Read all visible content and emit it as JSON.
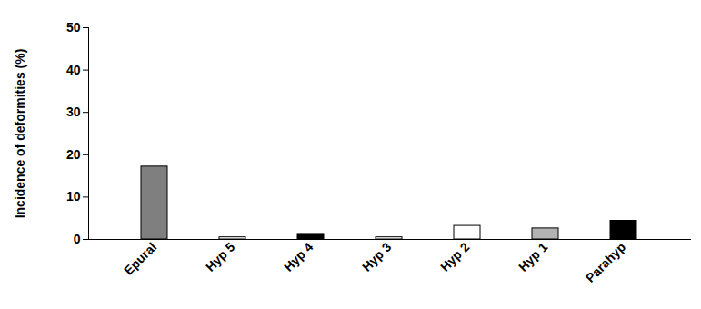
{
  "chart_data": {
    "type": "bar",
    "ylabel": "Incidence of deformities (%)",
    "categories": [
      "Epural",
      "Hyp 5",
      "Hyp 4",
      "Hyp 3",
      "Hyp 2",
      "Hyp 1",
      "Parahyp"
    ],
    "values": [
      17.2,
      0.5,
      1.3,
      0.5,
      3.2,
      2.6,
      4.4
    ],
    "colors": [
      "#7f7f7f",
      "#ffffff",
      "#000000",
      "#ffffff",
      "#ffffff",
      "#b3b3b3",
      "#000000"
    ],
    "ylim": [
      0,
      50
    ],
    "yticks": [
      0,
      10,
      20,
      30,
      40,
      50
    ],
    "grid": false
  }
}
